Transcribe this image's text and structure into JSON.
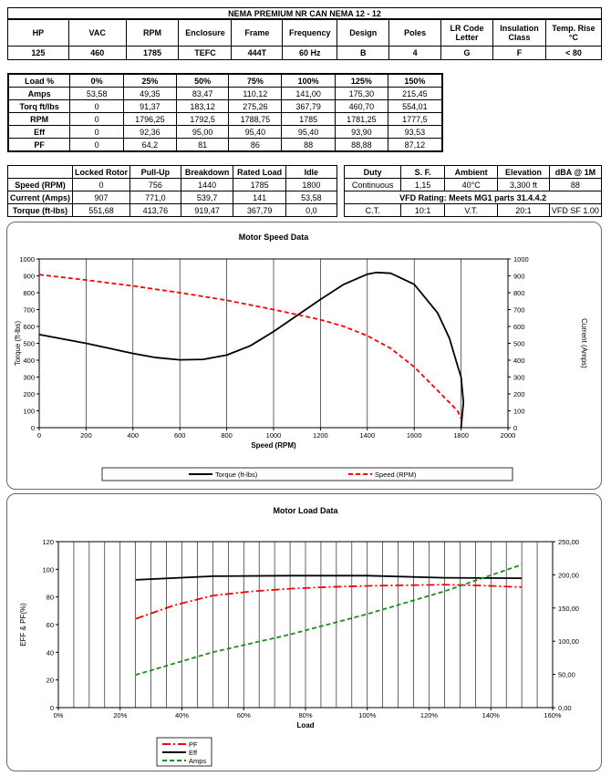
{
  "header_title": "NEMA PREMIUM NR CAN NEMA 12 - 12",
  "specs": {
    "headers": [
      "HP",
      "VAC",
      "RPM",
      "Enclosure",
      "Frame",
      "Frequency",
      "Design",
      "Poles",
      "LR Code\nLetter",
      "Insulation\nClass",
      "Temp. Rise\n°C"
    ],
    "values": [
      "125",
      "460",
      "1785",
      "TEFC",
      "444T",
      "60 Hz",
      "B",
      "4",
      "G",
      "F",
      "< 80"
    ]
  },
  "load_table": {
    "headers": [
      "Load %",
      "0%",
      "25%",
      "50%",
      "75%",
      "100%",
      "125%",
      "150%"
    ],
    "rows": [
      {
        "label": "Amps",
        "values": [
          "53,58",
          "49,35",
          "83,47",
          "110,12",
          "141,00",
          "175,30",
          "215,45"
        ]
      },
      {
        "label": "Torq ft/lbs",
        "values": [
          "0",
          "91,37",
          "183,12",
          "275,26",
          "367,79",
          "460,70",
          "554,01"
        ]
      },
      {
        "label": "RPM",
        "values": [
          "0",
          "1796,25",
          "1792,5",
          "1788,75",
          "1785",
          "1781,25",
          "1777,5"
        ]
      },
      {
        "label": "Eff",
        "values": [
          "0",
          "92,36",
          "95,00",
          "95,40",
          "95,40",
          "93,90",
          "93,53"
        ]
      },
      {
        "label": "PF",
        "values": [
          "0",
          "64,2",
          "81",
          "86",
          "88",
          "88,88",
          "87,12"
        ]
      }
    ]
  },
  "perf_table": {
    "headers": [
      "",
      "Locked Rotor",
      "Pull-Up",
      "Breakdown",
      "Rated Load",
      "Idle"
    ],
    "rows": [
      {
        "label": "Speed (RPM)",
        "values": [
          "0",
          "756",
          "1440",
          "1785",
          "1800"
        ]
      },
      {
        "label": "Current (Amps)",
        "values": [
          "907",
          "771,0",
          "539,7",
          "141",
          "53,58"
        ]
      },
      {
        "label": "Torque (ft-lbs)",
        "values": [
          "551,68",
          "413,76",
          "919,47",
          "367,79",
          "0,0"
        ]
      }
    ]
  },
  "duty_table": {
    "headers": [
      "Duty",
      "S. F.",
      "Ambient",
      "Elevation",
      "dBA @ 1M"
    ],
    "values": [
      "Continuous",
      "1,15",
      "40°C",
      "3,300 ft",
      "88"
    ],
    "vfd_rating": "VFD Rating: Meets MG1 parts 31.4.4.2",
    "vfd_values": [
      "C.T.",
      "10:1",
      "V.T.",
      "20:1",
      "VFD SF 1.00"
    ]
  },
  "chart_data": [
    {
      "type": "line",
      "title": "Motor Speed Data",
      "xlabel": "Speed (RPM)",
      "ylabel": "Torque (ft-lbs)",
      "y2label": "Current (Amps)",
      "xlim": [
        0,
        2000
      ],
      "ylim": [
        0,
        1000
      ],
      "y2lim": [
        0,
        1000
      ],
      "x_ticks": [
        "0",
        "200",
        "400",
        "600",
        "800",
        "1000",
        "1200",
        "1400",
        "1600",
        "1800",
        "2000"
      ],
      "y_ticks": [
        "0",
        "100",
        "200",
        "300",
        "400",
        "500",
        "600",
        "700",
        "800",
        "900",
        "1000"
      ],
      "y2_ticks": [
        "0",
        "100",
        "200",
        "300",
        "400",
        "500",
        "600",
        "700",
        "800",
        "900",
        "1000"
      ],
      "grid": "vertical",
      "legend": "bottom",
      "series": [
        {
          "name": "Torque (ft-lbs)",
          "color": "#000000",
          "style": "solid",
          "x": [
            0,
            200,
            400,
            500,
            600,
            700,
            800,
            900,
            1000,
            1100,
            1200,
            1300,
            1400,
            1440,
            1500,
            1600,
            1700,
            1750,
            1785,
            1800,
            1810,
            1800
          ],
          "y": [
            552,
            500,
            440,
            415,
            402,
            405,
            430,
            485,
            570,
            665,
            760,
            850,
            910,
            920,
            915,
            850,
            680,
            530,
            368,
            300,
            150,
            0
          ]
        },
        {
          "name": "Speed (RPM)",
          "color": "#ff0000",
          "style": "dashed",
          "x": [
            0,
            200,
            400,
            600,
            800,
            1000,
            1100,
            1200,
            1300,
            1400,
            1500,
            1600,
            1700,
            1785,
            1800
          ],
          "y": [
            907,
            875,
            840,
            800,
            755,
            700,
            670,
            640,
            600,
            545,
            470,
            360,
            220,
            100,
            54
          ]
        }
      ]
    },
    {
      "type": "line",
      "title": "Motor Load Data",
      "xlabel": "Load",
      "ylabel": "EFF & PF(%)",
      "xlim": [
        0,
        160
      ],
      "ylim": [
        0,
        120
      ],
      "y2lim": [
        0,
        250
      ],
      "x_ticks": [
        "0%",
        "20%",
        "40%",
        "60%",
        "80%",
        "100%",
        "120%",
        "140%",
        "160%"
      ],
      "y_ticks": [
        "0",
        "20",
        "40",
        "60",
        "80",
        "100",
        "120"
      ],
      "y2_ticks": [
        "0,00",
        "50,00",
        "100,00",
        "150,00",
        "200,00",
        "250,00"
      ],
      "grid": "vertical",
      "legend": "bottom-left",
      "series": [
        {
          "name": "PF",
          "color": "#ff0000",
          "style": "dashdot",
          "axis": "left",
          "x": [
            25,
            37.5,
            50,
            62.5,
            75,
            87.5,
            100,
            112.5,
            125,
            137.5,
            150
          ],
          "y": [
            64.2,
            74,
            81,
            84,
            86,
            87.2,
            88,
            88.5,
            88.88,
            88.2,
            87.12
          ]
        },
        {
          "name": "Eff",
          "color": "#000000",
          "style": "solid",
          "axis": "left",
          "x": [
            25,
            50,
            75,
            100,
            125,
            150
          ],
          "y": [
            92.36,
            95.0,
            95.4,
            95.4,
            93.9,
            93.53
          ]
        },
        {
          "name": "Amps",
          "color": "#1a8f1a",
          "style": "dashed",
          "axis": "right",
          "x": [
            25,
            50,
            75,
            100,
            125,
            150
          ],
          "y": [
            49.35,
            83.47,
            110.12,
            141.0,
            175.3,
            215.45
          ]
        }
      ]
    }
  ]
}
